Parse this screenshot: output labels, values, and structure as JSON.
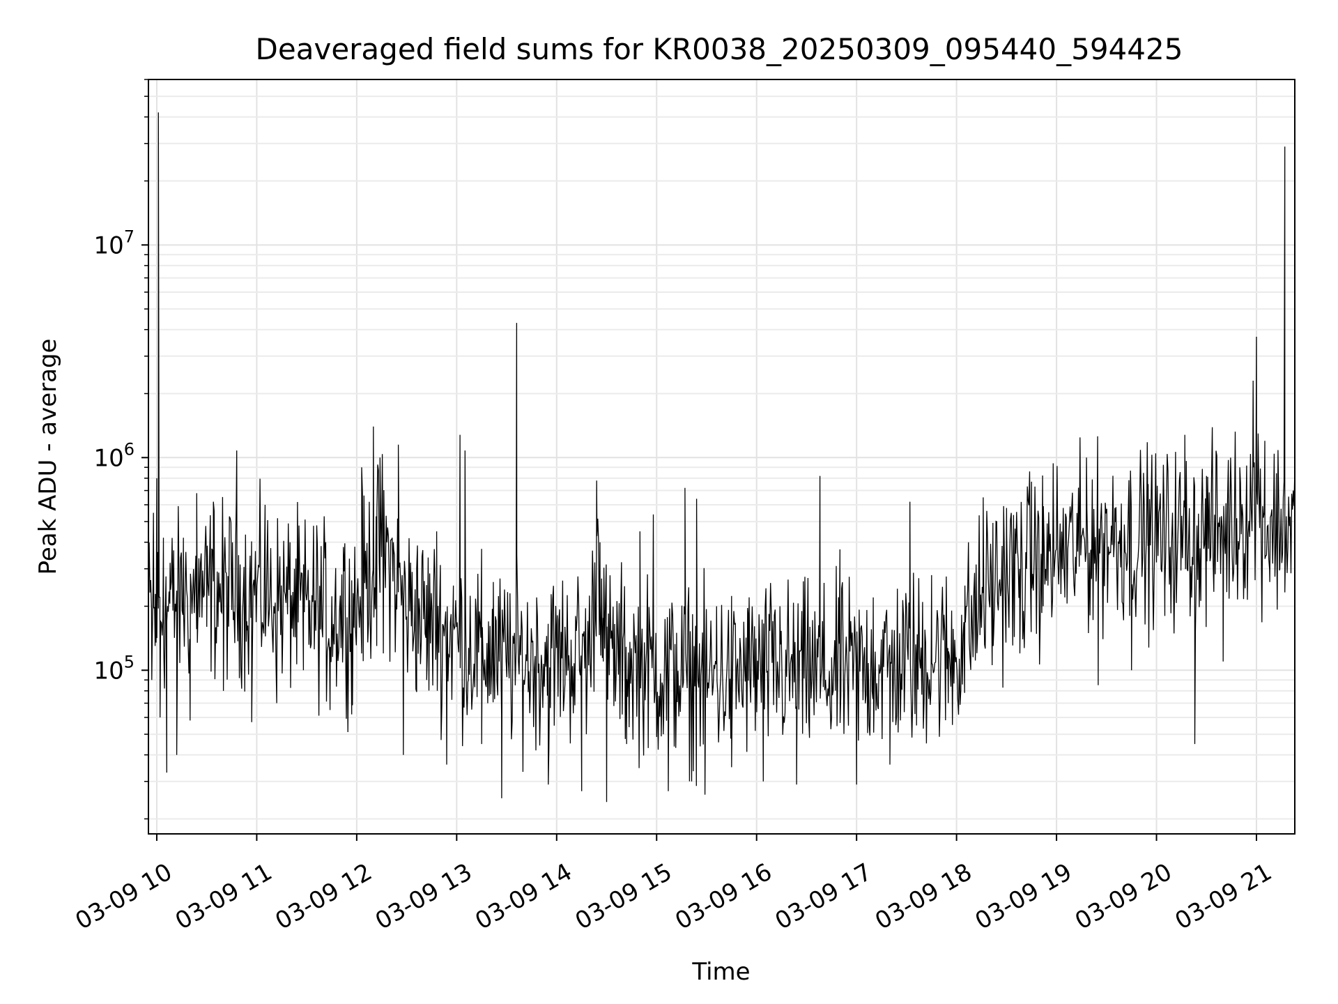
{
  "chart_data": {
    "type": "line",
    "title": "Deaveraged field sums for KR0038_20250309_095440_594425",
    "xlabel": "Time",
    "ylabel": "Peak ADU - average",
    "yscale": "log",
    "grid": true,
    "grid_minor": true,
    "line_color": "#000000",
    "xlim": [
      "2025-03-09 09:55",
      "2025-03-09 21:23"
    ],
    "ylim": [
      17000,
      60000000
    ],
    "x_ticks": [
      {
        "value": "2025-03-09 10:00",
        "label": "03-09 10"
      },
      {
        "value": "2025-03-09 11:00",
        "label": "03-09 11"
      },
      {
        "value": "2025-03-09 12:00",
        "label": "03-09 12"
      },
      {
        "value": "2025-03-09 13:00",
        "label": "03-09 13"
      },
      {
        "value": "2025-03-09 14:00",
        "label": "03-09 14"
      },
      {
        "value": "2025-03-09 15:00",
        "label": "03-09 15"
      },
      {
        "value": "2025-03-09 16:00",
        "label": "03-09 16"
      },
      {
        "value": "2025-03-09 17:00",
        "label": "03-09 17"
      },
      {
        "value": "2025-03-09 18:00",
        "label": "03-09 18"
      },
      {
        "value": "2025-03-09 19:00",
        "label": "03-09 19"
      },
      {
        "value": "2025-03-09 20:00",
        "label": "03-09 20"
      },
      {
        "value": "2025-03-09 21:00",
        "label": "03-09 21"
      }
    ],
    "y_ticks": [
      {
        "value": 100000,
        "base": "10",
        "exp": "5"
      },
      {
        "value": 1000000,
        "base": "10",
        "exp": "6"
      },
      {
        "value": 10000000,
        "base": "10",
        "exp": "7"
      }
    ],
    "series": [
      {
        "points": [
          [
            "2025-03-09 09:55",
            210000
          ],
          [
            "2025-03-09 09:57",
            90000
          ],
          [
            "2025-03-09 09:58",
            550000
          ],
          [
            "2025-03-09 09:59",
            130000
          ],
          [
            "2025-03-09 10:00",
            800000
          ],
          [
            "2025-03-09 10:01",
            42000000
          ],
          [
            "2025-03-09 10:02",
            60000
          ],
          [
            "2025-03-09 10:04",
            420000
          ],
          [
            "2025-03-09 10:06",
            33000
          ],
          [
            "2025-03-09 10:08",
            320000
          ],
          [
            "2025-03-09 10:12",
            40000
          ],
          [
            "2025-03-09 10:16",
            420000
          ],
          [
            "2025-03-09 10:20",
            58000
          ],
          [
            "2025-03-09 10:24",
            680000
          ],
          [
            "2025-03-09 10:30",
            160000
          ],
          [
            "2025-03-09 10:34",
            620000
          ],
          [
            "2025-03-09 10:40",
            80000
          ],
          [
            "2025-03-09 10:48",
            1080000
          ],
          [
            "2025-03-09 10:54",
            170000
          ],
          [
            "2025-03-09 10:57",
            57000
          ],
          [
            "2025-03-09 11:05",
            600000
          ],
          [
            "2025-03-09 11:12",
            70000
          ],
          [
            "2025-03-09 11:20",
            400000
          ],
          [
            "2025-03-09 11:28",
            100000
          ],
          [
            "2025-03-09 11:36",
            480000
          ],
          [
            "2025-03-09 11:44",
            65000
          ],
          [
            "2025-03-09 11:52",
            380000
          ],
          [
            "2025-03-09 11:57",
            62000
          ],
          [
            "2025-03-09 12:03",
            900000
          ],
          [
            "2025-03-09 12:08",
            250000
          ],
          [
            "2025-03-09 12:10",
            1400000
          ],
          [
            "2025-03-09 12:12",
            130000
          ],
          [
            "2025-03-09 12:14",
            1000000
          ],
          [
            "2025-03-09 12:16",
            120000
          ],
          [
            "2025-03-09 12:22",
            400000
          ],
          [
            "2025-03-09 12:25",
            1150000
          ],
          [
            "2025-03-09 12:28",
            40000
          ],
          [
            "2025-03-09 12:36",
            300000
          ],
          [
            "2025-03-09 12:42",
            90000
          ],
          [
            "2025-03-09 12:48",
            450000
          ],
          [
            "2025-03-09 12:54",
            36000
          ],
          [
            "2025-03-09 12:58",
            250000
          ],
          [
            "2025-03-09 13:02",
            1280000
          ],
          [
            "2025-03-09 13:05",
            1080000
          ],
          [
            "2025-03-09 13:07",
            90000
          ],
          [
            "2025-03-09 13:15",
            45000
          ],
          [
            "2025-03-09 13:22",
            260000
          ],
          [
            "2025-03-09 13:27",
            25000
          ],
          [
            "2025-03-09 13:32",
            230000
          ],
          [
            "2025-03-09 13:36",
            4300000
          ],
          [
            "2025-03-09 13:40",
            80000
          ],
          [
            "2025-03-09 13:48",
            200000
          ],
          [
            "2025-03-09 13:55",
            29000
          ],
          [
            "2025-03-09 14:05",
            160000
          ],
          [
            "2025-03-09 14:15",
            27000
          ],
          [
            "2025-03-09 14:22",
            180000
          ],
          [
            "2025-03-09 14:24",
            780000
          ],
          [
            "2025-03-09 14:26",
            400000
          ],
          [
            "2025-03-09 14:28",
            110000
          ],
          [
            "2025-03-09 14:30",
            24000
          ],
          [
            "2025-03-09 14:36",
            150000
          ],
          [
            "2025-03-09 14:42",
            45000
          ],
          [
            "2025-03-09 14:50",
            450000
          ],
          [
            "2025-03-09 14:58",
            540000
          ],
          [
            "2025-03-09 15:04",
            50000
          ],
          [
            "2025-03-09 15:07",
            27000
          ],
          [
            "2025-03-09 15:12",
            150000
          ],
          [
            "2025-03-09 15:17",
            720000
          ],
          [
            "2025-03-09 15:21",
            30000
          ],
          [
            "2025-03-09 15:24",
            640000
          ],
          [
            "2025-03-09 15:29",
            26000
          ],
          [
            "2025-03-09 15:36",
            200000
          ],
          [
            "2025-03-09 15:45",
            35000
          ],
          [
            "2025-03-09 15:55",
            180000
          ],
          [
            "2025-03-09 16:04",
            30000
          ],
          [
            "2025-03-09 16:14",
            200000
          ],
          [
            "2025-03-09 16:24",
            29000
          ],
          [
            "2025-03-09 16:32",
            160000
          ],
          [
            "2025-03-09 16:38",
            820000
          ],
          [
            "2025-03-09 16:45",
            60000
          ],
          [
            "2025-03-09 16:50",
            370000
          ],
          [
            "2025-03-09 17:00",
            29000
          ],
          [
            "2025-03-09 17:10",
            220000
          ],
          [
            "2025-03-09 17:20",
            36000
          ],
          [
            "2025-03-09 17:32",
            620000
          ],
          [
            "2025-03-09 17:36",
            55000
          ],
          [
            "2025-03-09 17:45",
            280000
          ],
          [
            "2025-03-09 17:55",
            70000
          ],
          [
            "2025-03-09 18:05",
            250000
          ],
          [
            "2025-03-09 18:16",
            650000
          ],
          [
            "2025-03-09 18:22",
            130000
          ],
          [
            "2025-03-09 18:30",
            580000
          ],
          [
            "2025-03-09 18:38",
            120000
          ],
          [
            "2025-03-09 18:45",
            770000
          ],
          [
            "2025-03-09 18:52",
            200000
          ],
          [
            "2025-03-09 18:58",
            940000
          ],
          [
            "2025-03-09 19:05",
            220000
          ],
          [
            "2025-03-09 19:18",
            1000000
          ],
          [
            "2025-03-09 19:25",
            85000
          ],
          [
            "2025-03-09 19:35",
            580000
          ],
          [
            "2025-03-09 19:45",
            100000
          ],
          [
            "2025-03-09 19:55",
            750000
          ],
          [
            "2025-03-09 20:05",
            180000
          ],
          [
            "2025-03-09 20:17",
            1280000
          ],
          [
            "2025-03-09 20:23",
            45000
          ],
          [
            "2025-03-09 20:30",
            820000
          ],
          [
            "2025-03-09 20:40",
            110000
          ],
          [
            "2025-03-09 20:50",
            900000
          ],
          [
            "2025-03-09 20:58",
            2300000
          ],
          [
            "2025-03-09 21:00",
            3700000
          ],
          [
            "2025-03-09 21:02",
            600000
          ],
          [
            "2025-03-09 21:05",
            1200000
          ],
          [
            "2025-03-09 21:08",
            260000
          ],
          [
            "2025-03-09 21:12",
            650000
          ],
          [
            "2025-03-09 21:14",
            300000
          ],
          [
            "2025-03-09 21:17",
            29000000
          ],
          [
            "2025-03-09 21:18",
            420000
          ],
          [
            "2025-03-09 21:23",
            550000
          ]
        ],
        "baseline": [
          [
            "2025-03-09 09:55",
            180000
          ],
          [
            "2025-03-09 10:30",
            240000
          ],
          [
            "2025-03-09 11:00",
            230000
          ],
          [
            "2025-03-09 11:45",
            180000
          ],
          [
            "2025-03-09 12:00",
            200000
          ],
          [
            "2025-03-09 12:15",
            400000
          ],
          [
            "2025-03-09 12:30",
            200000
          ],
          [
            "2025-03-09 13:00",
            140000
          ],
          [
            "2025-03-09 13:30",
            110000
          ],
          [
            "2025-03-09 14:20",
            120000
          ],
          [
            "2025-03-09 14:25",
            400000
          ],
          [
            "2025-03-09 14:30",
            120000
          ],
          [
            "2025-03-09 15:00",
            100000
          ],
          [
            "2025-03-09 15:30",
            90000
          ],
          [
            "2025-03-09 16:00",
            100000
          ],
          [
            "2025-03-09 16:45",
            95000
          ],
          [
            "2025-03-09 17:30",
            110000
          ],
          [
            "2025-03-09 18:00",
            120000
          ],
          [
            "2025-03-09 18:20",
            250000
          ],
          [
            "2025-03-09 18:40",
            300000
          ],
          [
            "2025-03-09 19:00",
            350000
          ],
          [
            "2025-03-09 19:30",
            420000
          ],
          [
            "2025-03-09 20:00",
            420000
          ],
          [
            "2025-03-09 20:30",
            420000
          ],
          [
            "2025-03-09 20:55",
            550000
          ],
          [
            "2025-03-09 21:00",
            700000
          ],
          [
            "2025-03-09 21:05",
            480000
          ],
          [
            "2025-03-09 21:23",
            480000
          ]
        ]
      }
    ]
  }
}
